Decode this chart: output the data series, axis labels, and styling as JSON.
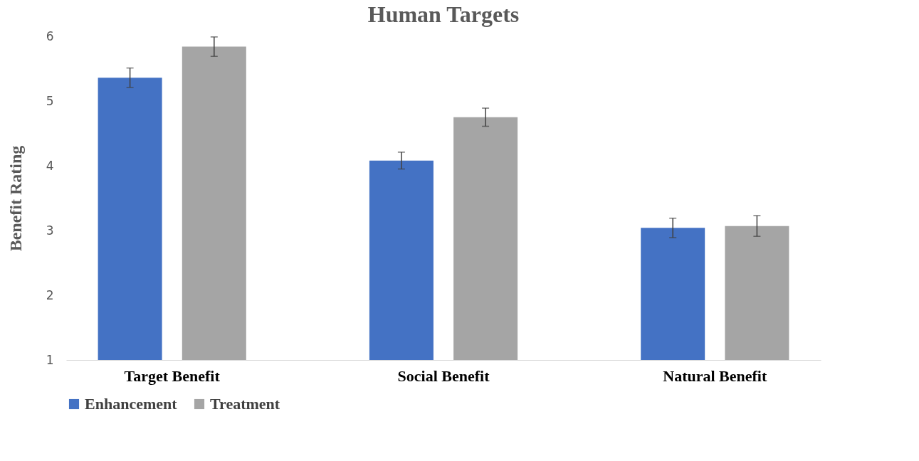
{
  "chart_data": {
    "type": "bar",
    "title": "Human Targets",
    "ylabel": "Benefit Rating",
    "categories": [
      "Target Benefit",
      "Social Benefit",
      "Natural Benefit"
    ],
    "series": [
      {
        "name": "Enhancement",
        "color": "#4472c4",
        "values": [
          5.36,
          4.08,
          3.04
        ],
        "errors": [
          0.15,
          0.13,
          0.15
        ]
      },
      {
        "name": "Treatment",
        "color": "#a5a5a5",
        "values": [
          5.84,
          4.75,
          3.07
        ],
        "errors": [
          0.15,
          0.14,
          0.16
        ]
      }
    ],
    "ylim": [
      1,
      6
    ],
    "yticks": [
      1,
      2,
      3,
      4,
      5,
      6
    ],
    "grid": false,
    "legend": "bottom"
  }
}
